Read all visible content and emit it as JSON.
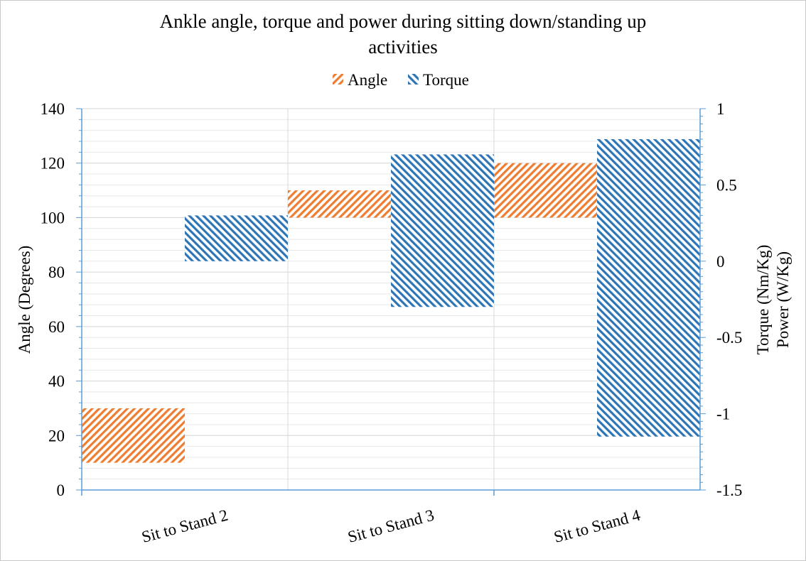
{
  "chart_data": {
    "type": "bar",
    "title_line1": "Ankle angle, torque and power during  sitting down/standing up",
    "title_line2": "activities",
    "categories": [
      "Sit to Stand 2",
      "Sit to Stand 3",
      "Sit to Stand 4"
    ],
    "legend": [
      "Angle",
      "Torque"
    ],
    "ylabel_left": "Angle (Degrees)",
    "ylabel_right_line1": "Torque (Nm/Kg)",
    "ylabel_right_line2": "Power (W/Kg)",
    "ylim_left": [
      0,
      140
    ],
    "yticks_left": [
      0,
      20,
      40,
      60,
      80,
      100,
      120,
      140
    ],
    "ylim_right": [
      -1.5,
      1
    ],
    "yticks_right": [
      1,
      0.5,
      0,
      -0.5,
      -1,
      -1.5
    ],
    "yticks_right_labels": [
      "1",
      "0.5",
      "0",
      "-0.5",
      "-1",
      "-1.5"
    ],
    "series": [
      {
        "name": "Angle",
        "axis": "left",
        "color": "#ED7D31",
        "ranges": [
          [
            10,
            30
          ],
          [
            100,
            110
          ],
          [
            100,
            120
          ]
        ]
      },
      {
        "name": "Torque",
        "axis": "right",
        "color": "#2E75B6",
        "ranges": [
          [
            0,
            0.3
          ],
          [
            -0.3,
            0.7
          ],
          [
            -1.15,
            0.8
          ]
        ]
      }
    ]
  }
}
